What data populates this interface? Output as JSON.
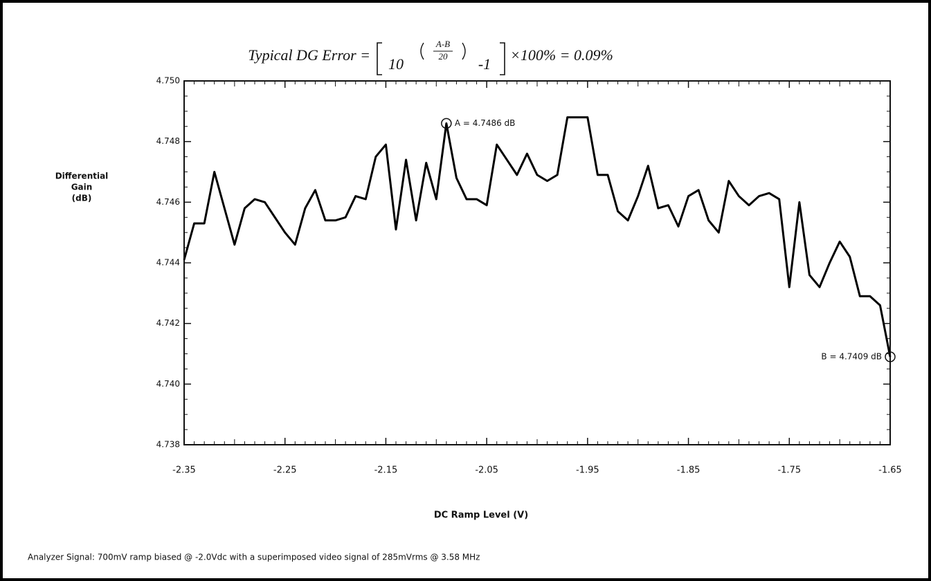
{
  "chart_data": {
    "type": "line",
    "title": {
      "lead": "Typical DG Error =",
      "base": "10",
      "numerator": "A-B",
      "denominator": "20",
      "minus": "-1",
      "tail": "×100% = 0.09%"
    },
    "ylabel": [
      "Differential",
      "Gain",
      "(dB)"
    ],
    "xlabel": "DC Ramp Level  (V)",
    "footnote": "Analyzer Signal:  700mV ramp biased @ -2.0Vdc with a superimposed video signal of 285mVrms @ 3.58 MHz",
    "x": [
      -2.35,
      -2.34,
      -2.33,
      -2.32,
      -2.31,
      -2.3,
      -2.29,
      -2.28,
      -2.27,
      -2.26,
      -2.25,
      -2.24,
      -2.23,
      -2.22,
      -2.21,
      -2.2,
      -2.19,
      -2.18,
      -2.17,
      -2.16,
      -2.15,
      -2.14,
      -2.13,
      -2.12,
      -2.11,
      -2.1,
      -2.09,
      -2.08,
      -2.07,
      -2.06,
      -2.05,
      -2.04,
      -2.03,
      -2.02,
      -2.01,
      -2.0,
      -1.99,
      -1.98,
      -1.97,
      -1.96,
      -1.95,
      -1.94,
      -1.93,
      -1.92,
      -1.91,
      -1.9,
      -1.89,
      -1.88,
      -1.87,
      -1.86,
      -1.85,
      -1.84,
      -1.83,
      -1.82,
      -1.81,
      -1.8,
      -1.79,
      -1.78,
      -1.77,
      -1.76,
      -1.75,
      -1.74,
      -1.73,
      -1.72,
      -1.71,
      -1.7,
      -1.69,
      -1.68,
      -1.67,
      -1.66,
      -1.65
    ],
    "series": [
      {
        "name": "Differential Gain",
        "color": "#000000",
        "values": [
          4.7441,
          4.7453,
          4.7453,
          4.747,
          4.7458,
          4.7446,
          4.7458,
          4.7461,
          4.746,
          4.7455,
          4.745,
          4.7446,
          4.7458,
          4.7464,
          4.7454,
          4.7454,
          4.7455,
          4.7462,
          4.7461,
          4.7475,
          4.7479,
          4.7451,
          4.7474,
          4.7454,
          4.7473,
          4.7461,
          4.7486,
          4.7468,
          4.7461,
          4.7461,
          4.7459,
          4.7479,
          4.7474,
          4.7469,
          4.7476,
          4.7469,
          4.7467,
          4.7469,
          4.7488,
          4.7488,
          4.7488,
          4.7469,
          4.7469,
          4.7457,
          4.7454,
          4.7462,
          4.7472,
          4.7458,
          4.7459,
          4.7452,
          4.7462,
          4.7464,
          4.7454,
          4.745,
          4.7467,
          4.7462,
          4.7459,
          4.7462,
          4.7463,
          4.7461,
          4.7432,
          4.746,
          4.7436,
          4.7432,
          4.744,
          4.7447,
          4.7442,
          4.7429,
          4.7429,
          4.7426,
          4.7409
        ]
      }
    ],
    "annotations": [
      {
        "text": "A = 4.7486 dB",
        "x": -2.09,
        "y": 4.7486
      },
      {
        "text": "B = 4.7409 dB",
        "x": -1.65,
        "y": 4.7409
      }
    ],
    "xlim": [
      -2.35,
      -1.65
    ],
    "xticks": [
      -2.35,
      -2.25,
      -2.15,
      -2.05,
      -1.95,
      -1.85,
      -1.75,
      -1.65
    ],
    "ylim": [
      4.738,
      4.75
    ],
    "yticks": [
      {
        "value": 4.738,
        "label": "4.738"
      },
      {
        "value": 4.74,
        "label": "4.740"
      },
      4.742,
      4.744,
      4.746,
      4.748,
      {
        "value": 4.75,
        "label": "4.750"
      }
    ],
    "grid": false
  }
}
